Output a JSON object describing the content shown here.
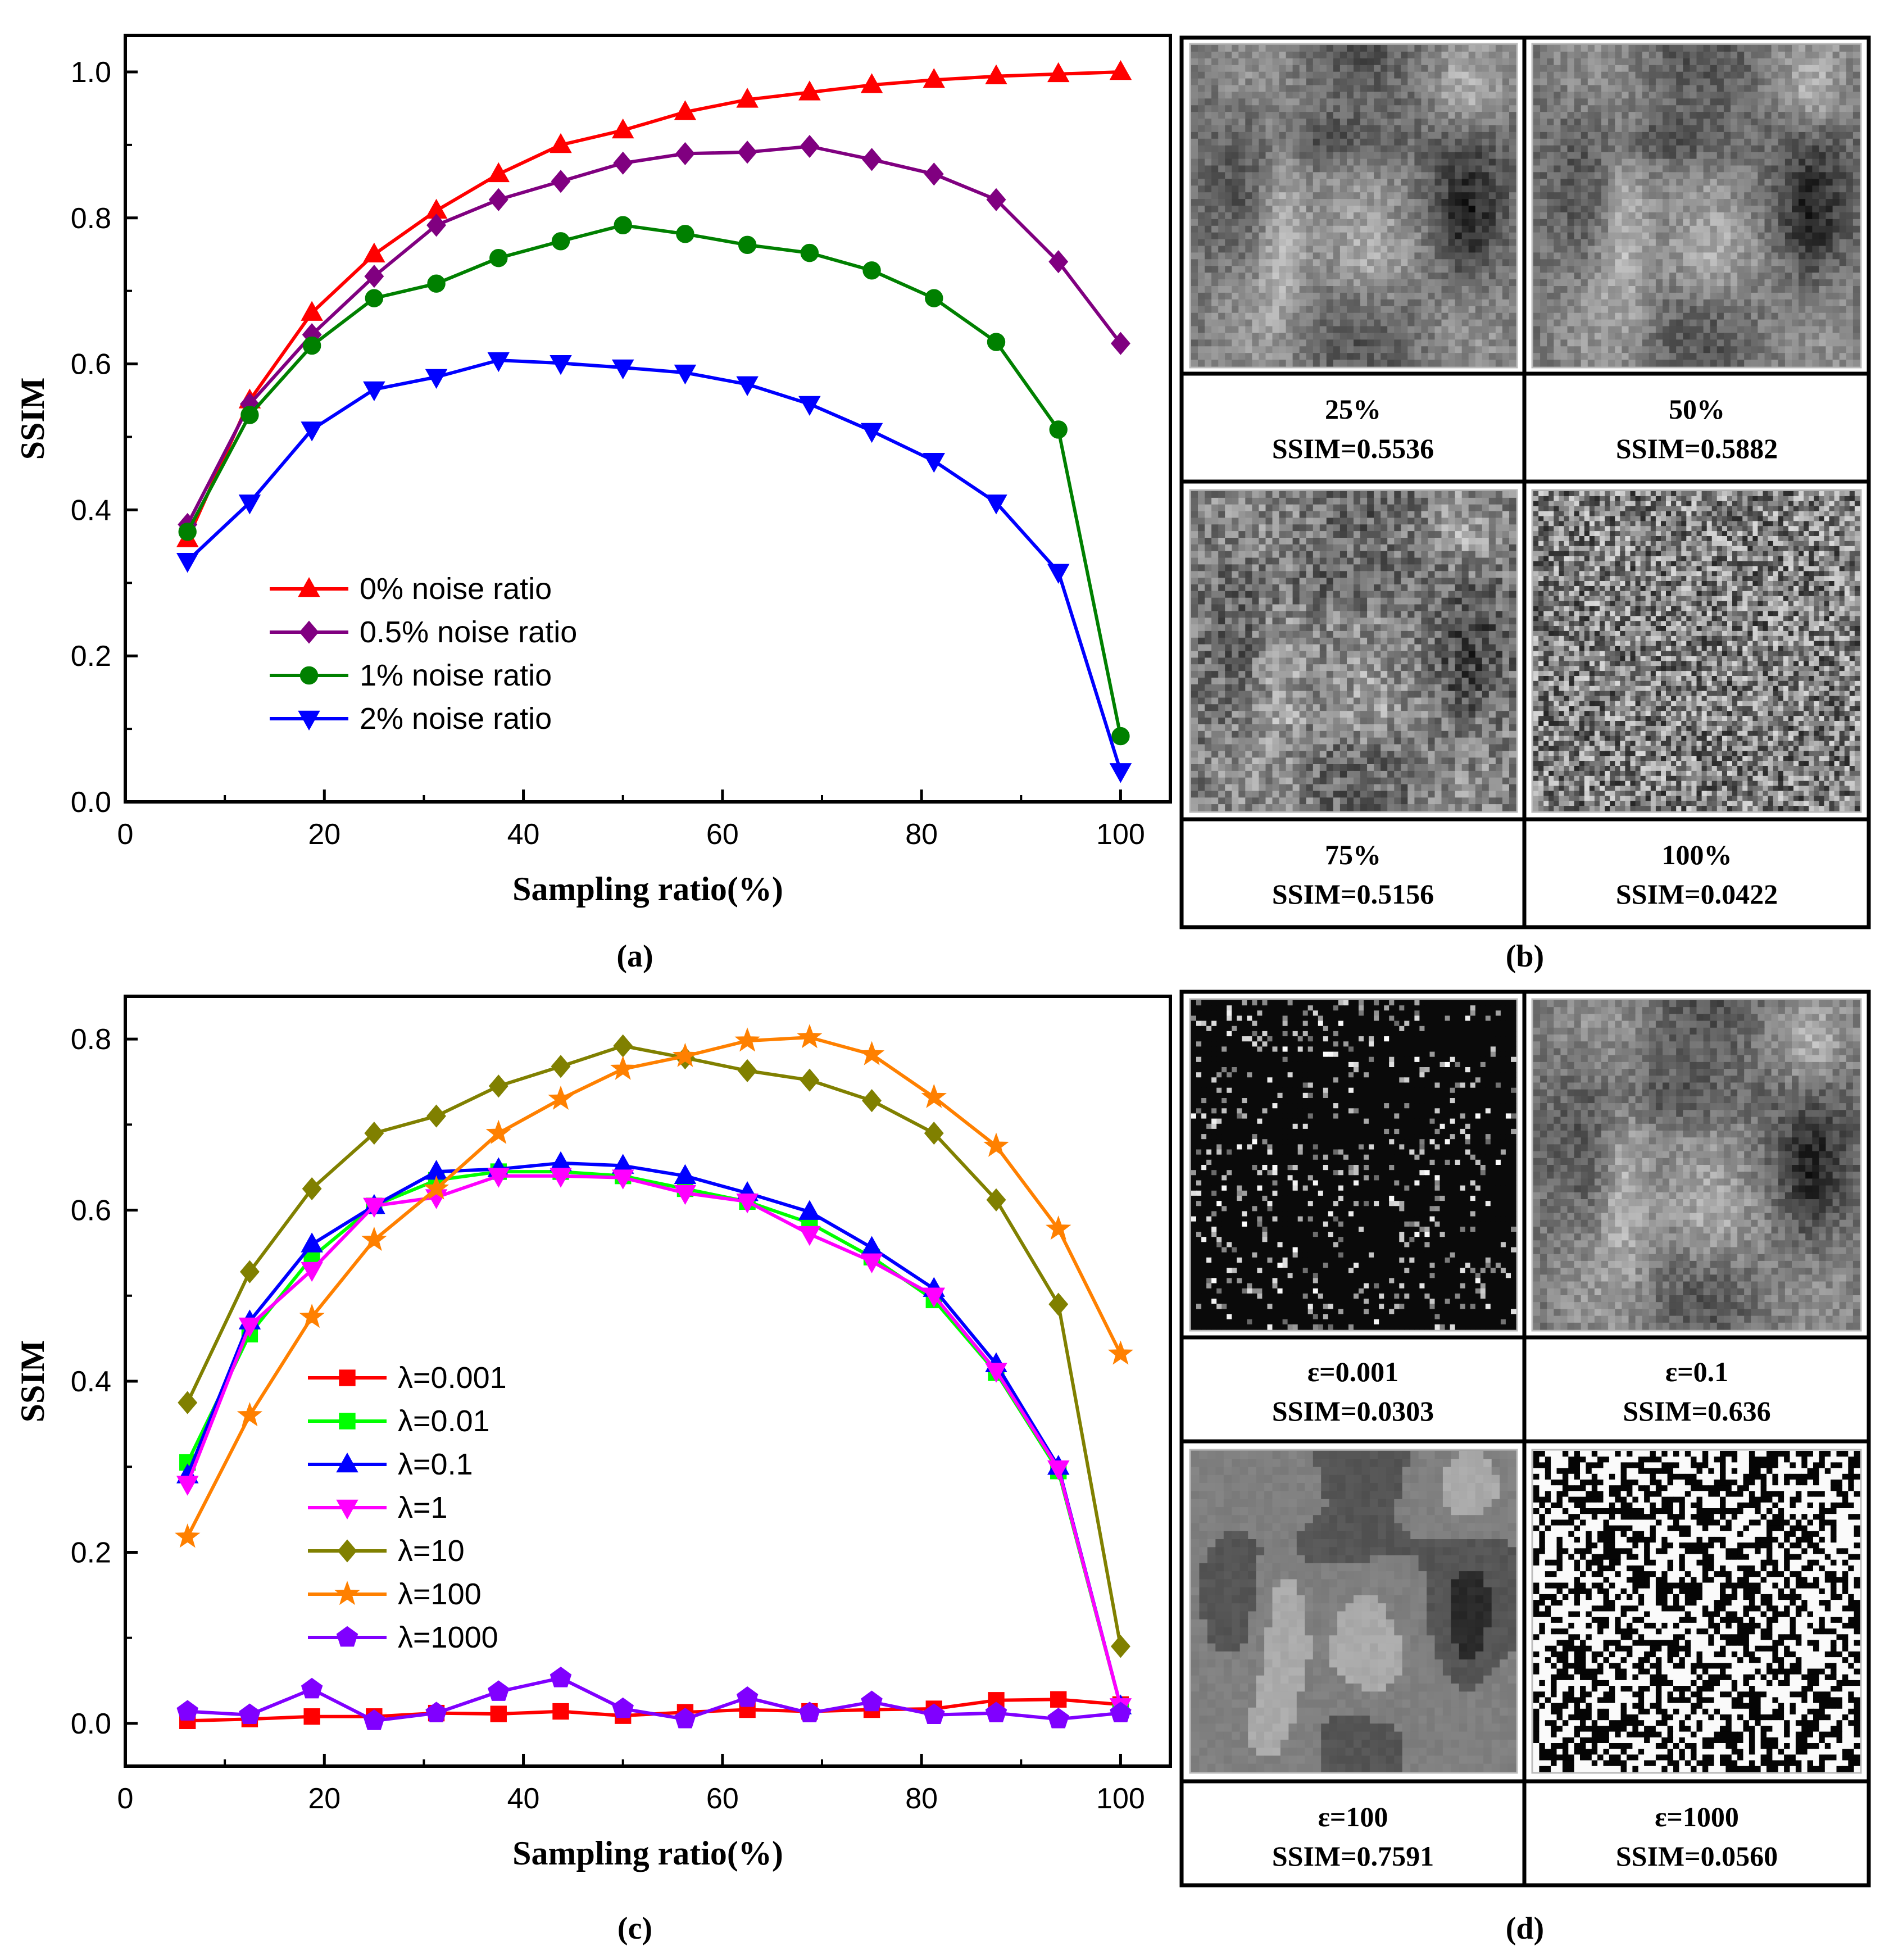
{
  "chart_data": [
    {
      "type": "line",
      "id": "a",
      "panel_label": "(a)",
      "xlabel": "Sampling ratio(%)",
      "ylabel": "SSIM",
      "xlim": [
        0,
        105
      ],
      "ylim": [
        0,
        1.05
      ],
      "xticks": [
        0,
        20,
        40,
        60,
        80,
        100
      ],
      "yticks": [
        0,
        0.2,
        0.4,
        0.6,
        0.8,
        1.0
      ],
      "ytick_labels": [
        "0.0",
        "0.2",
        "0.4",
        "0.6",
        "0.8",
        "1.0"
      ],
      "legend_position": "lower-left",
      "x": [
        6.25,
        12.5,
        18.75,
        25,
        31.25,
        37.5,
        43.75,
        50,
        56.25,
        62.5,
        68.75,
        75,
        81.25,
        87.5,
        93.75,
        100
      ],
      "series": [
        {
          "name": "0% noise ratio",
          "color": "#ff0000",
          "marker": "triangle-up",
          "values": [
            0.36,
            0.55,
            0.67,
            0.75,
            0.81,
            0.86,
            0.9,
            0.92,
            0.945,
            0.962,
            0.972,
            0.982,
            0.989,
            0.994,
            0.997,
            1.0
          ]
        },
        {
          "name": "0.5% noise ratio",
          "color": "#800080",
          "marker": "diamond",
          "values": [
            0.38,
            0.545,
            0.64,
            0.72,
            0.79,
            0.825,
            0.85,
            0.875,
            0.888,
            0.89,
            0.898,
            0.88,
            0.86,
            0.825,
            0.74,
            0.628
          ]
        },
        {
          "name": "1% noise ratio",
          "color": "#008000",
          "marker": "circle",
          "values": [
            0.37,
            0.53,
            0.625,
            0.69,
            0.71,
            0.745,
            0.768,
            0.79,
            0.778,
            0.763,
            0.752,
            0.728,
            0.69,
            0.63,
            0.51,
            0.09
          ]
        },
        {
          "name": "2% noise ratio",
          "color": "#0000ff",
          "marker": "triangle-down",
          "values": [
            0.33,
            0.41,
            0.51,
            0.565,
            0.582,
            0.605,
            0.601,
            0.595,
            0.588,
            0.572,
            0.545,
            0.508,
            0.467,
            0.41,
            0.315,
            0.042
          ]
        }
      ]
    },
    {
      "type": "line",
      "id": "c",
      "panel_label": "(c)",
      "xlabel": "Sampling ratio(%)",
      "ylabel": "SSIM",
      "xlim": [
        0,
        105
      ],
      "ylim": [
        -0.05,
        0.85
      ],
      "xticks": [
        0,
        20,
        40,
        60,
        80,
        100
      ],
      "yticks": [
        0,
        0.2,
        0.4,
        0.6,
        0.8
      ],
      "ytick_labels": [
        "0.0",
        "0.2",
        "0.4",
        "0.6",
        "0.8"
      ],
      "legend_position": "lower-left",
      "x": [
        6.25,
        12.5,
        18.75,
        25,
        31.25,
        37.5,
        43.75,
        50,
        56.25,
        62.5,
        68.75,
        75,
        81.25,
        87.5,
        93.75,
        100
      ],
      "series": [
        {
          "name": "λ=0.001",
          "color": "#ff0000",
          "marker": "square",
          "values": [
            0.003,
            0.005,
            0.008,
            0.008,
            0.012,
            0.011,
            0.014,
            0.009,
            0.013,
            0.016,
            0.014,
            0.016,
            0.017,
            0.027,
            0.028,
            0.022
          ]
        },
        {
          "name": "λ=0.01",
          "color": "#00ff00",
          "marker": "square",
          "values": [
            0.305,
            0.455,
            0.545,
            0.605,
            0.635,
            0.645,
            0.645,
            0.64,
            0.625,
            0.61,
            0.585,
            0.545,
            0.495,
            0.41,
            0.295,
            0.02
          ]
        },
        {
          "name": "λ=0.1",
          "color": "#0000ff",
          "marker": "triangle-up",
          "values": [
            0.29,
            0.47,
            0.56,
            0.605,
            0.645,
            0.648,
            0.655,
            0.652,
            0.64,
            0.62,
            0.598,
            0.556,
            0.508,
            0.42,
            0.3,
            0.02
          ]
        },
        {
          "name": "λ=1",
          "color": "#ff00ff",
          "marker": "triangle-down",
          "values": [
            0.28,
            0.465,
            0.53,
            0.605,
            0.615,
            0.64,
            0.64,
            0.638,
            0.62,
            0.61,
            0.572,
            0.54,
            0.5,
            0.412,
            0.298,
            0.02
          ]
        },
        {
          "name": "λ=10",
          "color": "#808000",
          "marker": "diamond",
          "values": [
            0.375,
            0.528,
            0.625,
            0.69,
            0.71,
            0.745,
            0.768,
            0.792,
            0.778,
            0.763,
            0.752,
            0.728,
            0.69,
            0.612,
            0.49,
            0.09
          ]
        },
        {
          "name": "λ=100",
          "color": "#ff8000",
          "marker": "star",
          "values": [
            0.218,
            0.36,
            0.475,
            0.565,
            0.625,
            0.69,
            0.73,
            0.765,
            0.78,
            0.798,
            0.802,
            0.782,
            0.732,
            0.675,
            0.578,
            0.432
          ]
        },
        {
          "name": "λ=1000",
          "color": "#8000ff",
          "marker": "pentagon",
          "values": [
            0.014,
            0.01,
            0.04,
            0.003,
            0.012,
            0.037,
            0.053,
            0.017,
            0.005,
            0.03,
            0.012,
            0.025,
            0.01,
            0.012,
            0.005,
            0.012
          ]
        }
      ]
    }
  ],
  "panel_b": {
    "label": "(b)",
    "cells": [
      {
        "line1": "25%",
        "line2": "SSIM=0.5536"
      },
      {
        "line1": "50%",
        "line2": "SSIM=0.5882"
      },
      {
        "line1": "75%",
        "line2": "SSIM=0.5156"
      },
      {
        "line1": "100%",
        "line2": "SSIM=0.0422"
      }
    ]
  },
  "panel_d": {
    "label": "(d)",
    "cells": [
      {
        "line1": "ε=0.001",
        "line2": "SSIM=0.0303"
      },
      {
        "line1": "ε=0.1",
        "line2": "SSIM=0.636"
      },
      {
        "line1": "ε=100",
        "line2": "SSIM=0.7591"
      },
      {
        "line1": "ε=1000",
        "line2": "SSIM=0.0560"
      }
    ]
  }
}
